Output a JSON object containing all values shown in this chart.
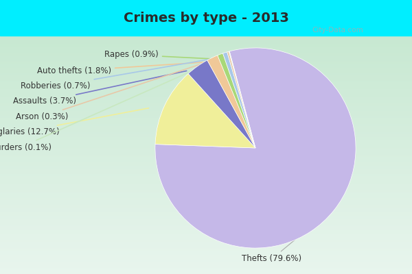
{
  "title": "Crimes by type - 2013",
  "slices": [
    {
      "label": "Thefts",
      "pct": 79.6,
      "color": "#c5b8e8"
    },
    {
      "label": "Burglaries",
      "pct": 12.7,
      "color": "#f0ef9a"
    },
    {
      "label": "Assaults",
      "pct": 3.7,
      "color": "#7878c8"
    },
    {
      "label": "Auto thefts",
      "pct": 1.8,
      "color": "#f0c898"
    },
    {
      "label": "Rapes",
      "pct": 0.9,
      "color": "#a8d878"
    },
    {
      "label": "Robberies",
      "pct": 0.7,
      "color": "#a8c8e8"
    },
    {
      "label": "Arson",
      "pct": 0.3,
      "color": "#e8c8a8"
    },
    {
      "label": "Murders",
      "pct": 0.1,
      "color": "#c8e8c0"
    }
  ],
  "bg_cyan": "#00eeff",
  "bg_grad_top": "#e8f5ec",
  "bg_grad_bottom": "#c8e8d0",
  "title_fontsize": 14,
  "label_fontsize": 8.5,
  "startangle": 105,
  "watermark": "City-Data.com"
}
